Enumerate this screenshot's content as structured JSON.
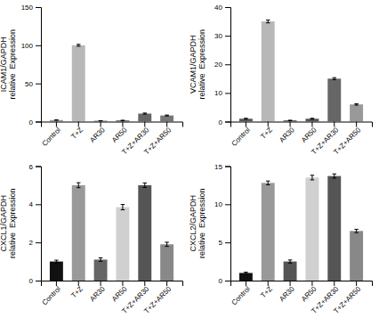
{
  "chart_data": [
    {
      "type": "bar",
      "categories": [
        "Control",
        "T+Z",
        "AR30",
        "AR50",
        "T+Z+AR30",
        "T+Z+AR50"
      ],
      "values": [
        2.0,
        100.0,
        1.0,
        1.5,
        10.5,
        8.0
      ],
      "errors": [
        0.2,
        1.2,
        0.15,
        0.2,
        0.7,
        0.6
      ],
      "ylabel": "ICAM1/GAPDH\nrelative  Expression",
      "ylim": [
        0,
        150
      ],
      "yticks": [
        0,
        50,
        100,
        150
      ],
      "colors": [
        "#999999",
        "#b8b8b8",
        "#444444",
        "#555555",
        "#666666",
        "#777777"
      ]
    },
    {
      "type": "bar",
      "categories": [
        "Control",
        "T+Z",
        "AR30",
        "AR50",
        "T+Z+AR30",
        "T+Z+AR50"
      ],
      "values": [
        1.0,
        35.0,
        0.4,
        1.0,
        15.0,
        6.0
      ],
      "errors": [
        0.15,
        0.5,
        0.08,
        0.15,
        0.35,
        0.25
      ],
      "ylabel": "VCAM1/GAPDH\nrelative  Expression",
      "ylim": [
        0,
        40
      ],
      "yticks": [
        0,
        10,
        20,
        30,
        40
      ],
      "colors": [
        "#555555",
        "#b8b8b8",
        "#444444",
        "#555555",
        "#666666",
        "#999999"
      ]
    },
    {
      "type": "bar",
      "categories": [
        "Control",
        "T+Z",
        "AR30",
        "AR50",
        "T+Z+AR30",
        "T+Z+AR50"
      ],
      "values": [
        1.0,
        5.0,
        1.1,
        3.85,
        5.0,
        1.9
      ],
      "errors": [
        0.07,
        0.13,
        0.09,
        0.14,
        0.12,
        0.11
      ],
      "ylabel": "CXCL1/GAPDH\nrelative  Expression",
      "ylim": [
        0,
        6
      ],
      "yticks": [
        0,
        2,
        4,
        6
      ],
      "colors": [
        "#111111",
        "#999999",
        "#666666",
        "#d0d0d0",
        "#555555",
        "#888888"
      ]
    },
    {
      "type": "bar",
      "categories": [
        "Control",
        "T+Z",
        "AR30",
        "AR50",
        "T+Z+AR30",
        "T+Z+AR50"
      ],
      "values": [
        1.0,
        12.8,
        2.5,
        13.5,
        13.7,
        6.5
      ],
      "errors": [
        0.1,
        0.25,
        0.2,
        0.3,
        0.28,
        0.22
      ],
      "ylabel": "CXCL2/GAPDH\nrelative  Expression",
      "ylim": [
        0,
        15
      ],
      "yticks": [
        0,
        5,
        10,
        15
      ],
      "colors": [
        "#111111",
        "#999999",
        "#555555",
        "#d0d0d0",
        "#555555",
        "#888888"
      ]
    }
  ]
}
